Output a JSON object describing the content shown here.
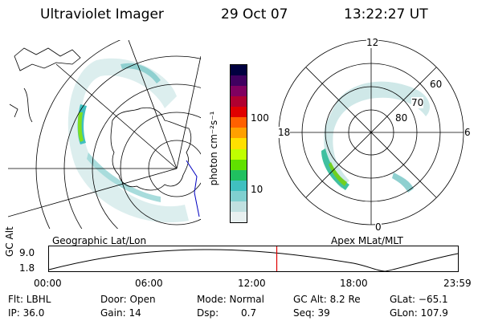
{
  "header": {
    "title": "Ultraviolet Imager",
    "date": "29 Oct 07",
    "time": "13:22:27 UT"
  },
  "colorbar": {
    "label": "photon cm⁻²s⁻¹",
    "ticks": [
      "100",
      "10"
    ],
    "colors": [
      "#000040",
      "#400060",
      "#800060",
      "#b00030",
      "#e00000",
      "#ff6000",
      "#ffa000",
      "#ffe000",
      "#c0ff00",
      "#60e000",
      "#20c060",
      "#40c0c0",
      "#80d0d0",
      "#c0e0e0",
      "#e8f0f0"
    ]
  },
  "left_map": {
    "label": "Geographic Lat/Lon"
  },
  "right_map": {
    "label": "Apex  MLat/MLT",
    "mlt_labels": {
      "top": "12",
      "left": "18",
      "right": "6",
      "bottom": "0"
    },
    "lat_labels": [
      "60",
      "70",
      "80"
    ]
  },
  "timeline": {
    "ylabel": "GC Alt",
    "ymax": "9.0",
    "ymin": "1.8",
    "x_ticks": [
      "00:00",
      "06:00",
      "12:00",
      "18:00",
      "23:59"
    ],
    "current_time_fraction": 0.557,
    "marker_color": "#e00000"
  },
  "footer": {
    "filter": "Flt: LBHL",
    "door": "Door: Open",
    "mode": "Mode: Normal",
    "gc_alt": "GC Alt: 8.2 Re",
    "glat": "GLat: −65.1",
    "ip": "IP: 36.0",
    "gain": "Gain: 14",
    "dsp_label": "Dsp:",
    "dsp_value": "0.7",
    "seq": "Seq: 39",
    "glon": "GLon: 107.9"
  }
}
